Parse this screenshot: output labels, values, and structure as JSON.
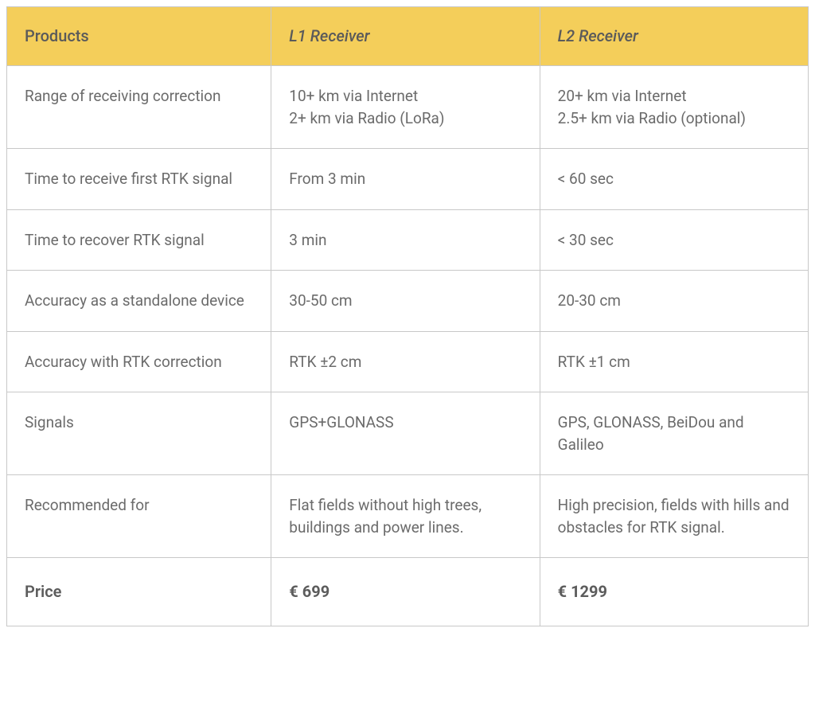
{
  "table": {
    "header_bg": "#f4ce5a",
    "text_color": "#6b6b6b",
    "border_color": "#c8c8c8",
    "columns": {
      "feature": "Products",
      "l1": "L1 Receiver",
      "l2": "L2 Receiver"
    },
    "rows": [
      {
        "feature": "Range of receiving correction",
        "l1": "10+ km via Internet\n2+ km via Radio (LoRa)",
        "l2": "20+ km via Internet\n2.5+ km via Radio (optional)"
      },
      {
        "feature": "Time to receive first RTK signal",
        "l1": "From 3 min",
        "l2": "< 60 sec"
      },
      {
        "feature": "Time to recover RTK signal",
        "l1": "3 min",
        "l2": "< 30 sec"
      },
      {
        "feature": "Accuracy as a standalone device",
        "l1": "30-50 cm",
        "l2": "20-30 cm"
      },
      {
        "feature": "Accuracy with RTK correction",
        "l1": "RTK ±2 cm",
        "l2": "RTK ±1 cm"
      },
      {
        "feature": "Signals",
        "l1": "GPS+GLONASS",
        "l2": "GPS, GLONASS, BeiDou and Galileo"
      },
      {
        "feature": "Recommended for",
        "l1": "Flat fields without high trees, buildings and power lines.",
        "l2": "High precision, fields with hills and obstacles for RTK signal."
      }
    ],
    "price_row": {
      "feature": "Price",
      "l1": "€ 699",
      "l2": "€ 1299"
    }
  }
}
